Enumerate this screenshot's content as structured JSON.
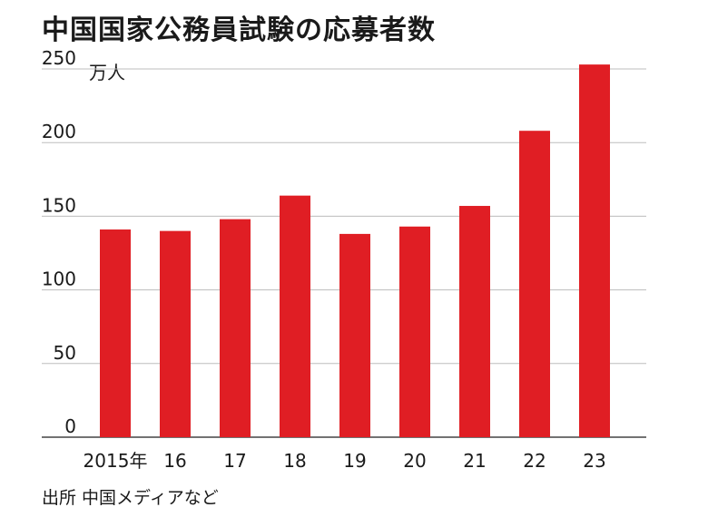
{
  "title": "中国国家公務員試験の応募者数",
  "unit": "万人",
  "source": "出所 中国メディアなど",
  "colors": {
    "bar": "#e01e24",
    "grid": "#bdbdbd",
    "text": "#1a1a1a",
    "background": "#ffffff"
  },
  "chart_data": {
    "type": "bar",
    "title": "中国国家公務員試験の応募者数",
    "xlabel": "",
    "ylabel": "万人",
    "categories": [
      "2015年",
      "16",
      "17",
      "18",
      "19",
      "20",
      "21",
      "22",
      "23"
    ],
    "values": [
      141,
      140,
      148,
      164,
      138,
      143,
      157,
      208,
      253
    ],
    "yticks": [
      0,
      50,
      100,
      150,
      200,
      250
    ],
    "ylim": [
      0,
      250
    ],
    "grid": true,
    "legend": "none"
  }
}
